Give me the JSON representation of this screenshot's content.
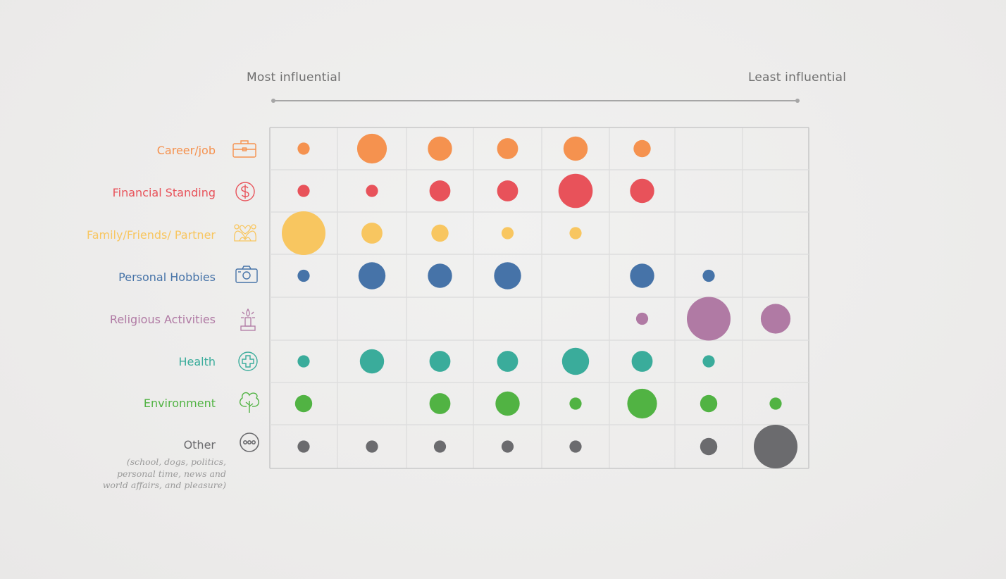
{
  "scale": {
    "most_label": "Most influential",
    "least_label": "Least influential"
  },
  "rows": [
    {
      "label": "Career/job",
      "icon": "briefcase-icon",
      "color": "#f5924f"
    },
    {
      "label": "Financial Standing",
      "icon": "dollar-circle-icon",
      "color": "#e8525a"
    },
    {
      "label": "Family/Friends/ Partner",
      "icon": "family-hearts-icon",
      "color": "#f8c660"
    },
    {
      "label": "Personal Hobbies",
      "icon": "camera-icon",
      "color": "#4673a8"
    },
    {
      "label": "Religious Activities",
      "icon": "candle-icon",
      "color": "#b07aa4"
    },
    {
      "label": "Health",
      "icon": "medical-cross-icon",
      "color": "#3aac9b"
    },
    {
      "label": "Environment",
      "icon": "tree-icon",
      "color": "#51b343"
    },
    {
      "label": "Other",
      "icon": "ellipsis-circle-icon",
      "color": "#6b6b6e",
      "note": "(school, dogs, politics, personal time, news and world affairs, and pleasure)"
    }
  ],
  "chart_data": {
    "type": "bubble",
    "x_label_left": "Most influential",
    "x_label_right": "Least influential",
    "columns": 8,
    "categories": [
      "Career/job",
      "Financial Standing",
      "Family/Friends/ Partner",
      "Personal Hobbies",
      "Religious Activities",
      "Health",
      "Environment",
      "Other"
    ],
    "series": [
      {
        "name": "Career/job",
        "values": [
          1,
          6,
          4,
          3,
          4,
          2,
          0,
          0
        ]
      },
      {
        "name": "Financial Standing",
        "values": [
          1,
          1,
          3,
          3,
          8,
          4,
          0,
          0
        ]
      },
      {
        "name": "Family/Friends/ Partner",
        "values": [
          13,
          3,
          2,
          1,
          1,
          0,
          0,
          0
        ]
      },
      {
        "name": "Personal Hobbies",
        "values": [
          1,
          5,
          4,
          5,
          0,
          4,
          1,
          0
        ]
      },
      {
        "name": "Religious Activities",
        "values": [
          0,
          0,
          0,
          0,
          0,
          1,
          13,
          6
        ]
      },
      {
        "name": "Health",
        "values": [
          1,
          4,
          3,
          3,
          5,
          3,
          1,
          0
        ]
      },
      {
        "name": "Environment",
        "values": [
          2,
          0,
          3,
          4,
          1,
          6,
          2,
          1
        ]
      },
      {
        "name": "Other",
        "values": [
          1,
          1,
          1,
          1,
          1,
          0,
          2,
          13
        ]
      }
    ],
    "grid": true
  }
}
